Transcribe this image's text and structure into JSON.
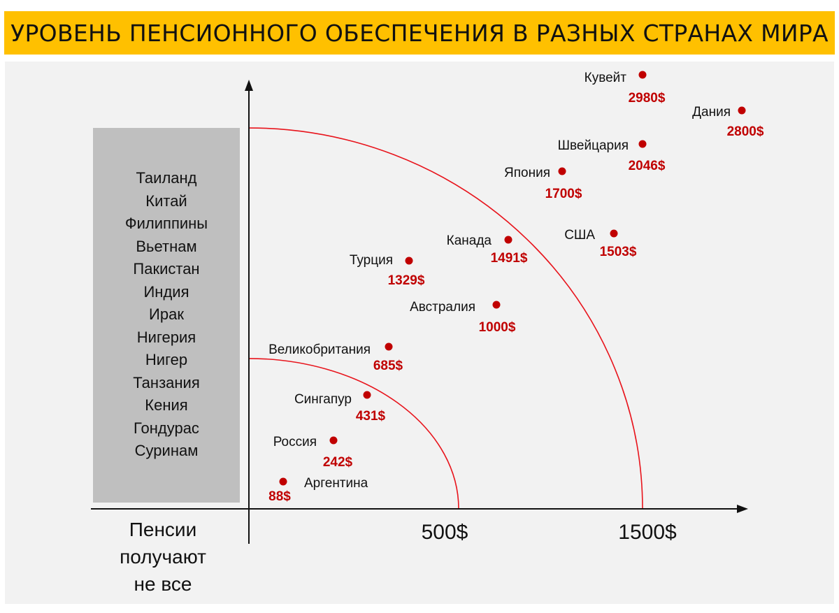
{
  "header": {
    "title": "УРОВЕНЬ ПЕНСИОННОГО ОБЕСПЕЧЕНИЯ В РАЗНЫХ СТРАНАХ МИРА"
  },
  "no_pension_box": {
    "countries": [
      "Таиланд",
      "Китай",
      "Филиппины",
      "Вьетнам",
      "Пакистан",
      "Индия",
      "Ирак",
      "Нигерия",
      "Нигер",
      "Танзания",
      "Кения",
      "Гондурас",
      "Суринам"
    ],
    "caption": [
      "Пенсии",
      "получают",
      "не все"
    ]
  },
  "chart_data": {
    "type": "scatter",
    "title": "УРОВЕНЬ ПЕНСИОННОГО ОБЕСПЕЧЕНИЯ В РАЗНЫХ СТРАНАХ МИРА",
    "xlabel": "",
    "ylabel": "",
    "tick_labels": [
      "500$",
      "1500$"
    ],
    "thresholds": [
      500,
      1500
    ],
    "grid": false,
    "legend": "none",
    "colors": {
      "points": "#c00000",
      "rings": "#e8141c",
      "banner": "#ffc000"
    },
    "points": [
      {
        "country": "Кувейт",
        "label": "2980$",
        "value": 2980
      },
      {
        "country": "Дания",
        "label": "2800$",
        "value": 2800
      },
      {
        "country": "Швейцария",
        "label": "2046$",
        "value": 2046
      },
      {
        "country": "Япония",
        "label": "1700$",
        "value": 1700
      },
      {
        "country": "США",
        "label": "1503$",
        "value": 1503
      },
      {
        "country": "Канада",
        "label": "1491$",
        "value": 1491
      },
      {
        "country": "Турция",
        "label": "1329$",
        "value": 1329
      },
      {
        "country": "Австралия",
        "label": "1000$",
        "value": 1000
      },
      {
        "country": "Великобритания",
        "label": "685$",
        "value": 685
      },
      {
        "country": "Сингапур",
        "label": "431$",
        "value": 431
      },
      {
        "country": "Россия",
        "label": "242$",
        "value": 242
      },
      {
        "country": "Аргентина",
        "label": "88$",
        "value": 88
      }
    ]
  }
}
